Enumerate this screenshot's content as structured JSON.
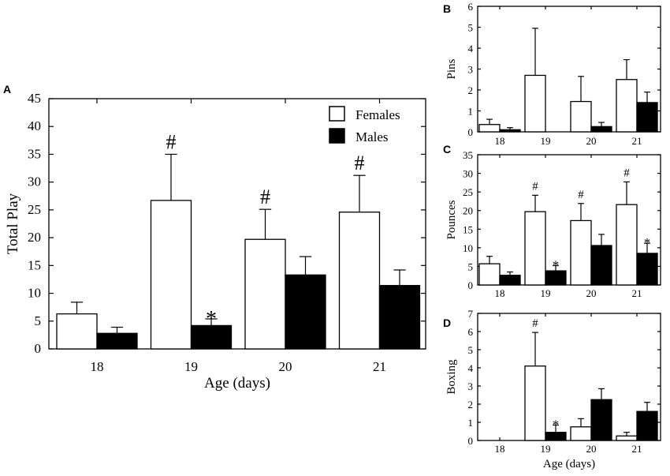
{
  "figure": {
    "legend": {
      "females": "Females",
      "males": "Males"
    }
  },
  "chart_data": [
    {
      "panel": "A",
      "type": "bar",
      "categories": [
        "18",
        "19",
        "20",
        "21"
      ],
      "series": [
        {
          "name": "Females",
          "values": [
            6.3,
            26.7,
            19.7,
            24.6
          ],
          "errors": [
            2.1,
            8.3,
            5.4,
            6.6
          ],
          "color": "#ffffff"
        },
        {
          "name": "Males",
          "values": [
            2.8,
            4.2,
            13.3,
            11.4
          ],
          "errors": [
            1.1,
            1.2,
            3.3,
            2.8
          ],
          "color": "#000000"
        }
      ],
      "annotations": [
        {
          "series": "Females",
          "category": "19",
          "text": "#"
        },
        {
          "series": "Males",
          "category": "19",
          "text": "*"
        },
        {
          "series": "Females",
          "category": "20",
          "text": "#"
        },
        {
          "series": "Females",
          "category": "21",
          "text": "#"
        }
      ],
      "title": "",
      "xlabel": "Age (days)",
      "ylabel": "Total Play",
      "ylim": [
        0,
        45
      ],
      "yticks": [
        0,
        5,
        10,
        15,
        20,
        25,
        30,
        35,
        40,
        45
      ],
      "legend": "top-right"
    },
    {
      "panel": "B",
      "type": "bar",
      "categories": [
        "18",
        "19",
        "20",
        "21"
      ],
      "series": [
        {
          "name": "Females",
          "values": [
            0.35,
            2.7,
            1.45,
            2.5
          ],
          "errors": [
            0.25,
            2.25,
            1.2,
            0.95
          ],
          "color": "#ffffff"
        },
        {
          "name": "Males",
          "values": [
            0.1,
            0.0,
            0.25,
            1.4
          ],
          "errors": [
            0.1,
            0.0,
            0.2,
            0.5
          ],
          "color": "#000000"
        }
      ],
      "annotations": [],
      "title": "",
      "xlabel": "",
      "ylabel": "Pins",
      "ylim": [
        0,
        6
      ],
      "yticks": [
        0,
        1,
        2,
        3,
        4,
        5,
        6
      ]
    },
    {
      "panel": "C",
      "type": "bar",
      "categories": [
        "18",
        "19",
        "20",
        "21"
      ],
      "series": [
        {
          "name": "Females",
          "values": [
            5.7,
            19.7,
            17.3,
            21.6
          ],
          "errors": [
            2.0,
            4.4,
            4.6,
            6.1
          ],
          "color": "#ffffff"
        },
        {
          "name": "Males",
          "values": [
            2.6,
            3.8,
            10.6,
            8.5
          ],
          "errors": [
            0.9,
            1.4,
            3.0,
            2.7
          ],
          "color": "#000000"
        }
      ],
      "annotations": [
        {
          "series": "Females",
          "category": "19",
          "text": "#"
        },
        {
          "series": "Males",
          "category": "19",
          "text": "*"
        },
        {
          "series": "Females",
          "category": "20",
          "text": "#"
        },
        {
          "series": "Females",
          "category": "21",
          "text": "#"
        },
        {
          "series": "Males",
          "category": "21",
          "text": "*"
        }
      ],
      "title": "",
      "xlabel": "",
      "ylabel": "Pounces",
      "ylim": [
        0,
        35
      ],
      "yticks": [
        0,
        5,
        10,
        15,
        20,
        25,
        30,
        35
      ]
    },
    {
      "panel": "D",
      "type": "bar",
      "categories": [
        "18",
        "19",
        "20",
        "21"
      ],
      "series": [
        {
          "name": "Females",
          "values": [
            0.0,
            4.1,
            0.75,
            0.25
          ],
          "errors": [
            0.0,
            1.85,
            0.45,
            0.2
          ],
          "color": "#ffffff"
        },
        {
          "name": "Males",
          "values": [
            0.0,
            0.45,
            2.25,
            1.6
          ],
          "errors": [
            0.0,
            0.4,
            0.6,
            0.5
          ],
          "color": "#000000"
        }
      ],
      "annotations": [
        {
          "series": "Females",
          "category": "19",
          "text": "#"
        },
        {
          "series": "Males",
          "category": "19",
          "text": "*"
        }
      ],
      "title": "",
      "xlabel": "Age (days)",
      "ylabel": "Boxing",
      "ylim": [
        0,
        7
      ],
      "yticks": [
        0,
        1,
        2,
        3,
        4,
        5,
        6,
        7
      ]
    }
  ]
}
